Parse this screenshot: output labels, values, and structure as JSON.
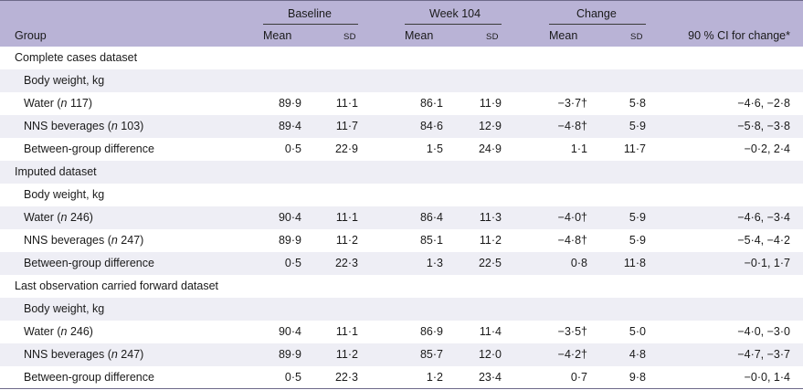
{
  "header": {
    "group_label": "Group",
    "groups": [
      {
        "label": "Baseline",
        "cols": [
          "Mean",
          "SD"
        ]
      },
      {
        "label": "Week 104",
        "cols": [
          "Mean",
          "SD"
        ]
      },
      {
        "label": "Change",
        "cols": [
          "Mean",
          "SD"
        ]
      }
    ],
    "ci_label": "90 % CI for change*"
  },
  "rows": [
    {
      "label": "Complete cases dataset",
      "type": "section"
    },
    {
      "label": "Body weight, kg",
      "type": "sub"
    },
    {
      "label_pre": "Water (",
      "label_it": "n",
      "label_post": " 117)",
      "type": "data",
      "values": [
        "89·9",
        "11·1",
        "86·1",
        "11·9",
        "−3·7†",
        "5·8",
        "−4·6, −2·8"
      ]
    },
    {
      "label_pre": "NNS beverages (",
      "label_it": "n",
      "label_post": " 103)",
      "type": "data",
      "values": [
        "89·4",
        "11·7",
        "84·6",
        "12·9",
        "−4·8†",
        "5·9",
        "−5·8, −3·8"
      ]
    },
    {
      "label": "Between-group difference",
      "type": "data",
      "values": [
        "0·5",
        "22·9",
        "1·5",
        "24·9",
        "1·1",
        "11·7",
        "−0·2, 2·4"
      ]
    },
    {
      "label": "Imputed dataset",
      "type": "section"
    },
    {
      "label": "Body weight, kg",
      "type": "sub"
    },
    {
      "label_pre": "Water (",
      "label_it": "n",
      "label_post": " 246)",
      "type": "data",
      "values": [
        "90·4",
        "11·1",
        "86·4",
        "11·3",
        "−4·0†",
        "5·9",
        "−4·6, −3·4"
      ]
    },
    {
      "label_pre": "NNS beverages (",
      "label_it": "n",
      "label_post": " 247)",
      "type": "data",
      "values": [
        "89·9",
        "11·2",
        "85·1",
        "11·2",
        "−4·8†",
        "5·9",
        "−5·4, −4·2"
      ]
    },
    {
      "label": "Between-group difference",
      "type": "data",
      "values": [
        "0·5",
        "22·3",
        "1·3",
        "22·5",
        "0·8",
        "11·8",
        "−0·1, 1·7"
      ]
    },
    {
      "label": "Last observation carried forward dataset",
      "type": "section"
    },
    {
      "label": "Body weight, kg",
      "type": "sub"
    },
    {
      "label_pre": "Water (",
      "label_it": "n",
      "label_post": " 246)",
      "type": "data",
      "values": [
        "90·4",
        "11·1",
        "86·9",
        "11·4",
        "−3·5†",
        "5·0",
        "−4·0, −3·0"
      ]
    },
    {
      "label_pre": "NNS beverages (",
      "label_it": "n",
      "label_post": " 247)",
      "type": "data",
      "values": [
        "89·9",
        "11·2",
        "85·7",
        "12·0",
        "−4·2†",
        "4·8",
        "−4·7, −3·7"
      ]
    },
    {
      "label": "Between-group difference",
      "type": "data",
      "values": [
        "0·5",
        "22·3",
        "1·2",
        "23·4",
        "0·7",
        "9·8",
        "−0·0, 1·4"
      ]
    }
  ]
}
